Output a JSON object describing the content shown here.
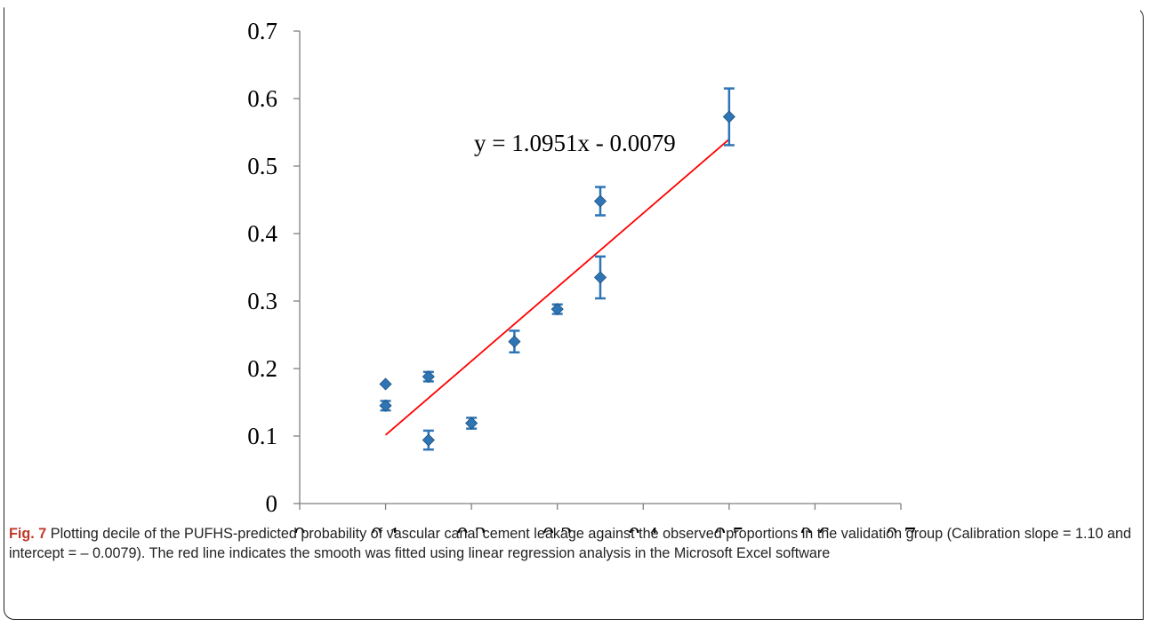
{
  "chart_data": {
    "type": "scatter",
    "xlim": [
      0,
      0.7
    ],
    "ylim": [
      0,
      0.7
    ],
    "xticks": [
      "0",
      "0.1",
      "0.2",
      "0.3",
      "0.4",
      "0.5",
      "0.6",
      "0.7"
    ],
    "yticks": [
      "0",
      "0.1",
      "0.2",
      "0.3",
      "0.4",
      "0.5",
      "0.6",
      "0.7"
    ],
    "grid": false,
    "points": [
      {
        "x": 0.1,
        "y": 0.177,
        "err": 0.0
      },
      {
        "x": 0.1,
        "y": 0.145,
        "err": 0.007
      },
      {
        "x": 0.15,
        "y": 0.188,
        "err": 0.007
      },
      {
        "x": 0.15,
        "y": 0.094,
        "err": 0.014
      },
      {
        "x": 0.2,
        "y": 0.119,
        "err": 0.008
      },
      {
        "x": 0.25,
        "y": 0.24,
        "err": 0.016
      },
      {
        "x": 0.3,
        "y": 0.288,
        "err": 0.007
      },
      {
        "x": 0.35,
        "y": 0.448,
        "err": 0.021
      },
      {
        "x": 0.35,
        "y": 0.335,
        "err": 0.031
      },
      {
        "x": 0.5,
        "y": 0.573,
        "err": 0.042
      }
    ],
    "point_color": "#2e75b6",
    "trendline": {
      "slope": 1.0951,
      "intercept": -0.0079,
      "x_range": [
        0.1,
        0.5
      ],
      "color": "#ff0000",
      "equation_label": "y = 1.0951x - 0.0079"
    }
  },
  "caption": {
    "fig_label": "Fig. 7",
    "text": " Plotting decile of the PUFHS-predicted probability of vascular canal cement leakage against the observed proportions in the validation group (Calibration slope = 1.10 and intercept = – 0.0079). The red line indicates the smooth was fitted using linear regression analysis in the Microsoft Excel software"
  }
}
